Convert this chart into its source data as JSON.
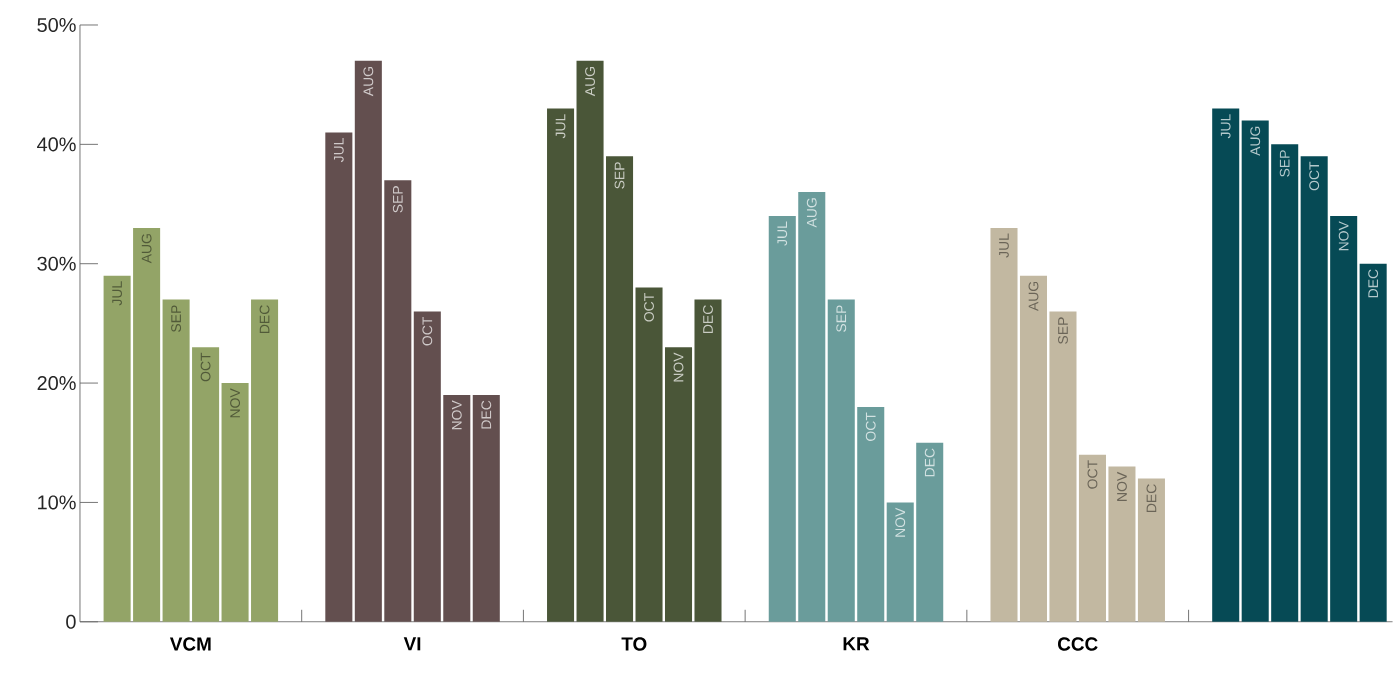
{
  "chart_data": {
    "type": "bar",
    "categories": [
      "VCM",
      "VI",
      "TO",
      "KR",
      "CCC",
      null
    ],
    "series": [
      {
        "name": "JUL",
        "colors": [
          "#93a467",
          "#634f4f",
          "#4a5638",
          "#6a9c9b",
          "#c2b8a1",
          "#064a55"
        ],
        "values": [
          29,
          41,
          43,
          34,
          33,
          43
        ]
      },
      {
        "name": "AUG",
        "colors": [
          "#93a467",
          "#634f4f",
          "#4a5638",
          "#6a9c9b",
          "#c2b8a1",
          "#064a55"
        ],
        "values": [
          33,
          47,
          47,
          36,
          29,
          42
        ]
      },
      {
        "name": "SEP",
        "colors": [
          "#93a467",
          "#634f4f",
          "#4a5638",
          "#6a9c9b",
          "#c2b8a1",
          "#064a55"
        ],
        "values": [
          27,
          37,
          39,
          27,
          26,
          40
        ]
      },
      {
        "name": "OCT",
        "colors": [
          "#93a467",
          "#634f4f",
          "#4a5638",
          "#6a9c9b",
          "#c2b8a1",
          "#064a55"
        ],
        "values": [
          23,
          26,
          28,
          18,
          14,
          39
        ]
      },
      {
        "name": "NOV",
        "colors": [
          "#93a467",
          "#634f4f",
          "#4a5638",
          "#6a9c9b",
          "#c2b8a1",
          "#064a55"
        ],
        "values": [
          20,
          19,
          23,
          10,
          13,
          34
        ]
      },
      {
        "name": "DEC",
        "colors": [
          "#93a467",
          "#634f4f",
          "#4a5638",
          "#6a9c9b",
          "#c2b8a1",
          "#064a55"
        ],
        "values": [
          27,
          19,
          27,
          15,
          12,
          30
        ]
      }
    ],
    "ylim": [
      0,
      50
    ],
    "yticks": [
      0,
      {
        "value": 10,
        "label": "10%"
      },
      {
        "value": 20,
        "label": "20%"
      },
      {
        "value": 30,
        "label": "30%"
      },
      {
        "value": 40,
        "label": "40%"
      },
      {
        "value": 50,
        "label": "50%"
      }
    ]
  }
}
